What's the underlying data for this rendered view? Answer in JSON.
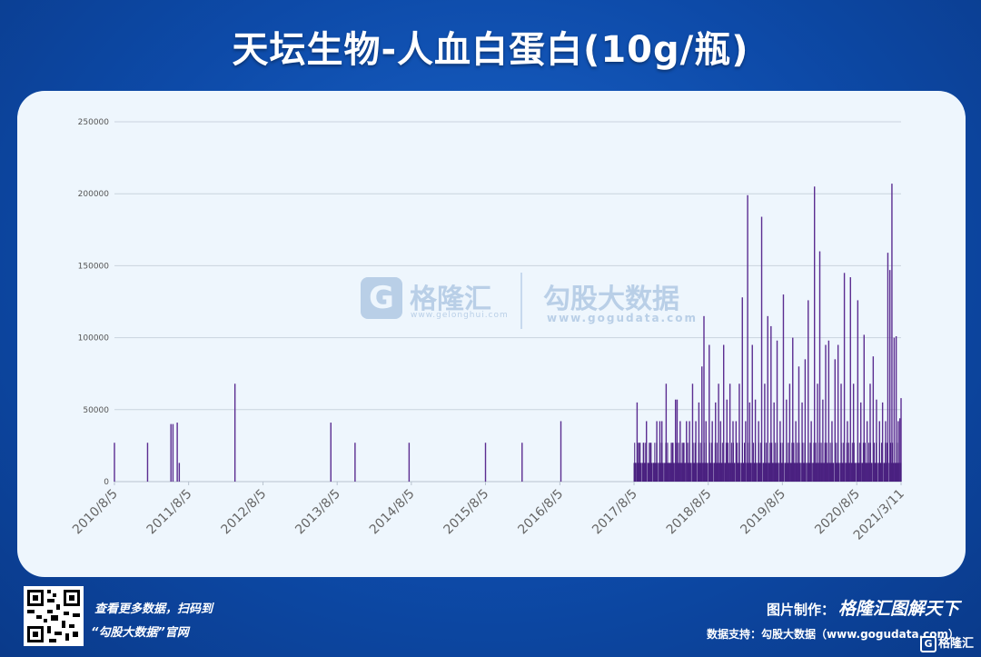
{
  "header": {
    "title": "天坛生物-人血白蛋白(10g/瓶)"
  },
  "watermark": {
    "brand1": "格隆汇",
    "url1": "www.gelonghui.com",
    "brand2": "勾股大数据",
    "url2": "www.gogudata.com",
    "logo_letter": "G"
  },
  "footer": {
    "promo_line1": "查看更多数据，扫码到",
    "promo_line2": "“勾股大数据”官网",
    "credit_label": "图片制作：",
    "credit_logo": "格隆汇图解天下",
    "support": "数据支持：勾股大数据（www.gogudata.com）",
    "badge": "格隆汇",
    "badge_letter": "G"
  },
  "colors": {
    "bar": "#5b2d91",
    "background": "#0d4aa8",
    "panel": "#eef6fd",
    "grid": "#c9d3de"
  },
  "chart_data": {
    "type": "bar",
    "title": "",
    "xlabel": "",
    "ylabel": "",
    "ylim": [
      0,
      250000
    ],
    "yticks": [
      0,
      50000,
      100000,
      150000,
      200000,
      250000
    ],
    "x_range": [
      "2010-08-05",
      "2021-03-11"
    ],
    "xtick_labels": [
      "2010/8/5",
      "2011/8/5",
      "2012/8/5",
      "2013/8/5",
      "2014/8/5",
      "2015/8/5",
      "2016/8/5",
      "2017/8/5",
      "2018/8/5",
      "2019/8/5",
      "2020/8/5",
      "2021/3/11"
    ],
    "grid": true,
    "legend": "none",
    "series": [
      {
        "points": [
          [
            "2010-08-05",
            27000
          ],
          [
            "2011-01-15",
            27000
          ],
          [
            "2011-05-10",
            40000
          ],
          [
            "2011-05-20",
            40000
          ],
          [
            "2011-06-10",
            41000
          ],
          [
            "2011-06-20",
            13000
          ],
          [
            "2012-03-20",
            68000
          ],
          [
            "2013-07-05",
            41000
          ],
          [
            "2013-11-01",
            27000
          ],
          [
            "2014-07-25",
            27000
          ],
          [
            "2015-08-05",
            27000
          ],
          [
            "2016-02-01",
            27000
          ],
          [
            "2016-08-10",
            42000
          ],
          [
            "2017-08-10",
            13000
          ],
          [
            "2017-08-20",
            55000
          ],
          [
            "2017-09-01",
            27000
          ],
          [
            "2017-09-20",
            27000
          ],
          [
            "2017-10-05",
            42000
          ],
          [
            "2017-10-25",
            27000
          ],
          [
            "2017-11-10",
            13000
          ],
          [
            "2017-11-25",
            42000
          ],
          [
            "2017-12-10",
            42000
          ],
          [
            "2017-12-20",
            42000
          ],
          [
            "2018-01-10",
            68000
          ],
          [
            "2018-01-25",
            13000
          ],
          [
            "2018-02-10",
            27000
          ],
          [
            "2018-02-25",
            57000
          ],
          [
            "2018-03-05",
            57000
          ],
          [
            "2018-03-20",
            42000
          ],
          [
            "2018-04-05",
            27000
          ],
          [
            "2018-04-20",
            42000
          ],
          [
            "2018-05-05",
            42000
          ],
          [
            "2018-05-20",
            68000
          ],
          [
            "2018-06-05",
            42000
          ],
          [
            "2018-06-20",
            55000
          ],
          [
            "2018-07-05",
            80000
          ],
          [
            "2018-07-15",
            115000
          ],
          [
            "2018-07-25",
            42000
          ],
          [
            "2018-08-10",
            95000
          ],
          [
            "2018-08-25",
            42000
          ],
          [
            "2018-09-10",
            55000
          ],
          [
            "2018-09-25",
            68000
          ],
          [
            "2018-10-05",
            42000
          ],
          [
            "2018-10-20",
            95000
          ],
          [
            "2018-11-05",
            57000
          ],
          [
            "2018-11-20",
            68000
          ],
          [
            "2018-12-05",
            42000
          ],
          [
            "2018-12-20",
            42000
          ],
          [
            "2019-01-05",
            68000
          ],
          [
            "2019-01-20",
            128000
          ],
          [
            "2019-02-05",
            42000
          ],
          [
            "2019-02-15",
            199000
          ],
          [
            "2019-02-25",
            55000
          ],
          [
            "2019-03-10",
            95000
          ],
          [
            "2019-03-25",
            57000
          ],
          [
            "2019-04-10",
            42000
          ],
          [
            "2019-04-25",
            184000
          ],
          [
            "2019-05-10",
            68000
          ],
          [
            "2019-05-25",
            115000
          ],
          [
            "2019-06-10",
            108000
          ],
          [
            "2019-06-25",
            55000
          ],
          [
            "2019-07-10",
            98000
          ],
          [
            "2019-07-25",
            42000
          ],
          [
            "2019-08-10",
            130000
          ],
          [
            "2019-08-25",
            57000
          ],
          [
            "2019-09-10",
            68000
          ],
          [
            "2019-09-25",
            100000
          ],
          [
            "2019-10-10",
            42000
          ],
          [
            "2019-10-25",
            80000
          ],
          [
            "2019-11-10",
            55000
          ],
          [
            "2019-11-25",
            85000
          ],
          [
            "2019-12-10",
            126000
          ],
          [
            "2019-12-25",
            42000
          ],
          [
            "2020-01-10",
            205000
          ],
          [
            "2020-01-25",
            68000
          ],
          [
            "2020-02-05",
            160000
          ],
          [
            "2020-02-20",
            57000
          ],
          [
            "2020-03-05",
            95000
          ],
          [
            "2020-03-20",
            98000
          ],
          [
            "2020-04-05",
            42000
          ],
          [
            "2020-04-20",
            85000
          ],
          [
            "2020-05-05",
            95000
          ],
          [
            "2020-05-20",
            68000
          ],
          [
            "2020-06-05",
            145000
          ],
          [
            "2020-06-20",
            42000
          ],
          [
            "2020-07-05",
            142000
          ],
          [
            "2020-07-20",
            68000
          ],
          [
            "2020-08-10",
            126000
          ],
          [
            "2020-08-25",
            55000
          ],
          [
            "2020-09-10",
            102000
          ],
          [
            "2020-09-25",
            42000
          ],
          [
            "2020-10-10",
            68000
          ],
          [
            "2020-10-25",
            87000
          ],
          [
            "2020-11-10",
            57000
          ],
          [
            "2020-11-25",
            42000
          ],
          [
            "2020-12-10",
            55000
          ],
          [
            "2020-12-25",
            42000
          ],
          [
            "2021-01-05",
            159000
          ],
          [
            "2021-01-15",
            147000
          ],
          [
            "2021-01-25",
            207000
          ],
          [
            "2021-02-05",
            100000
          ],
          [
            "2021-02-15",
            101000
          ],
          [
            "2021-02-25",
            42000
          ],
          [
            "2021-03-05",
            44000
          ],
          [
            "2021-03-11",
            58000
          ]
        ]
      }
    ]
  }
}
